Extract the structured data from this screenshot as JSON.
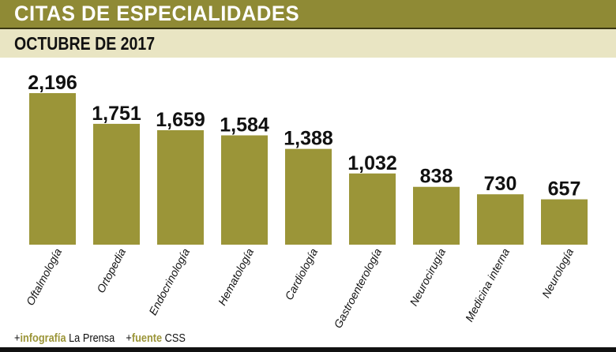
{
  "header": {
    "title": "CITAS DE ESPECIALIDADES",
    "subtitle": "OCTUBRE DE 2017"
  },
  "footer": {
    "credit_prefix": "+",
    "credit_label": "infografía",
    "credit_value": "La Prensa",
    "source_prefix": "+",
    "source_label": "fuente",
    "source_value": "CSS"
  },
  "colors": {
    "bar": "#9b9538",
    "title_band": "#8f8a35",
    "subtitle_band": "#e9e5c3"
  },
  "chart_data": {
    "type": "bar",
    "title": "CITAS DE ESPECIALIDADES",
    "subtitle": "OCTUBRE DE 2017",
    "categories": [
      "Oftalmología",
      "Ortopedia",
      "Endocrinología",
      "Hematología",
      "Cardiología",
      "Gastroenterología",
      "Neurocirugía",
      "Medicina interna",
      "Neurología"
    ],
    "values": [
      2196,
      1751,
      1659,
      1584,
      1388,
      1032,
      838,
      730,
      657
    ],
    "value_labels": [
      "2,196",
      "1,751",
      "1,659",
      "1,584",
      "1,388",
      "1,032",
      "838",
      "730",
      "657"
    ],
    "xlabel": "",
    "ylabel": "",
    "ylim": [
      0,
      2196
    ],
    "grid": false
  }
}
